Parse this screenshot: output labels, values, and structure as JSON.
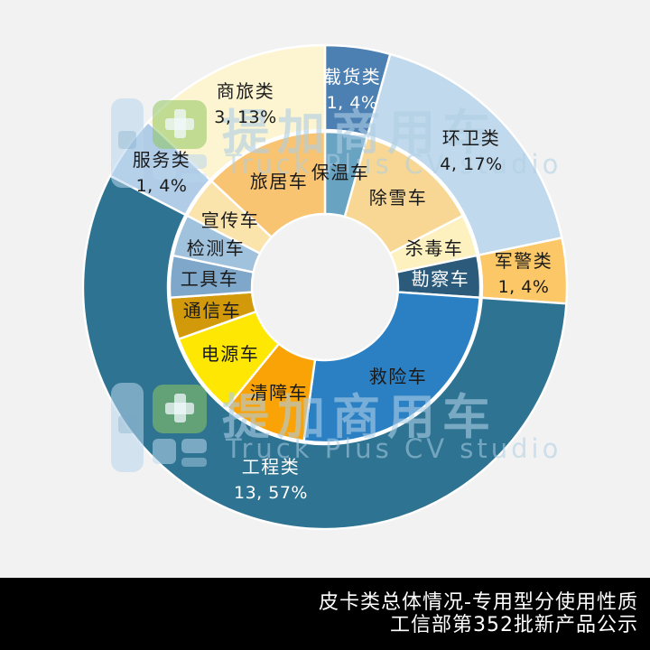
{
  "background_color": "#f2f2f2",
  "watermark": {
    "brand_cn": "提加商用车",
    "brand_en": "Truck Plus CV studio",
    "text_color": "rgba(173,205,228,0.6)",
    "logo_green": "rgba(143,198,94,0.55)",
    "logo_blue": "rgba(185,214,236,0.55)"
  },
  "footer": {
    "line1": "皮卡类总体情况-专用型分使用性质",
    "line2": "工信部第352批新产品公示",
    "bg_color": "#000000",
    "text_color": "#ffffff"
  },
  "chart_data": {
    "type": "pie",
    "subtype": "two-ring-donut-sunburst",
    "total_units": 23,
    "start_angle_deg": 0,
    "direction": "clockwise",
    "grid": false,
    "legend": false,
    "rings": [
      {
        "id": "outer-categories",
        "items": [
          {
            "label": "载货类",
            "value": 1,
            "data_label": "1, 4%",
            "color": "#4d80b2",
            "label_color": "#ffffff"
          },
          {
            "label": "环卫类",
            "value": 4,
            "data_label": "4, 17%",
            "color": "#c1d9ec",
            "label_color": "#1a1a1a"
          },
          {
            "label": "军警类",
            "value": 1,
            "data_label": "1, 4%",
            "color": "#fbc767",
            "label_color": "#1a1a1a"
          },
          {
            "label": "工程类",
            "value": 13,
            "data_label": "13, 57%",
            "color": "#2e7492",
            "label_color": "#ffffff"
          },
          {
            "label": "服务类",
            "value": 1,
            "data_label": "1, 4%",
            "color": "#b0cce7",
            "label_color": "#1a1a1a"
          },
          {
            "label": "商旅类",
            "value": 3,
            "data_label": "3, 13%",
            "color": "#fdf5d1",
            "label_color": "#1a1a1a"
          }
        ]
      },
      {
        "id": "inner-vehicles",
        "items": [
          {
            "label": "保温车",
            "value": 1,
            "parent": "载货类",
            "color": "#68a3c2",
            "label_color": "#1a1a1a"
          },
          {
            "label": "除雪车",
            "value": 3,
            "parent": "环卫类",
            "color": "#f7d793",
            "label_color": "#1a1a1a"
          },
          {
            "label": "杀毒车",
            "value": 1,
            "parent": "环卫类",
            "color": "#fdf1c0",
            "label_color": "#1a1a1a"
          },
          {
            "label": "勘察车",
            "value": 1,
            "parent": "军警类",
            "color": "#2b5a7b",
            "label_color": "#ffffff"
          },
          {
            "label": "救险车",
            "value": 6,
            "parent": "工程类",
            "color": "#2a80c3",
            "label_color": "#1a1a1a"
          },
          {
            "label": "清障车",
            "value": 2,
            "parent": "工程类",
            "color": "#faa306",
            "label_color": "#1a1a1a"
          },
          {
            "label": "电源车",
            "value": 2,
            "parent": "工程类",
            "color": "#fee803",
            "label_color": "#1a1a1a"
          },
          {
            "label": "通信车",
            "value": 1,
            "parent": "工程类",
            "color": "#d2990b",
            "label_color": "#1a1a1a"
          },
          {
            "label": "工具车",
            "value": 1,
            "parent": "工程类",
            "color": "#7ea7ca",
            "label_color": "#1a1a1a"
          },
          {
            "label": "检测车",
            "value": 1,
            "parent": "工程类",
            "color": "#a1c2dd",
            "label_color": "#1a1a1a"
          },
          {
            "label": "宣传车",
            "value": 1,
            "parent": "服务类",
            "color": "#fbe3ac",
            "label_color": "#1a1a1a"
          },
          {
            "label": "旅居车",
            "value": 3,
            "parent": "商旅类",
            "color": "#f9c472",
            "label_color": "#1a1a1a"
          }
        ]
      }
    ]
  }
}
